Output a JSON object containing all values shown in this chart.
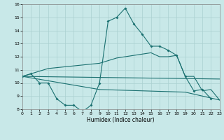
{
  "xlabel": "Humidex (Indice chaleur)",
  "xlim": [
    0,
    23
  ],
  "ylim": [
    8,
    16
  ],
  "xticks": [
    0,
    1,
    2,
    3,
    4,
    5,
    6,
    7,
    8,
    9,
    10,
    11,
    12,
    13,
    14,
    15,
    16,
    17,
    18,
    19,
    20,
    21,
    22,
    23
  ],
  "yticks": [
    8,
    9,
    10,
    11,
    12,
    13,
    14,
    15,
    16
  ],
  "bg_color": "#c8e8e8",
  "grid_color": "#aad0d0",
  "line_color": "#1a7070",
  "line1_x": [
    0,
    1,
    2,
    3,
    4,
    5,
    6,
    7,
    8,
    9,
    10,
    11,
    12,
    13,
    14,
    15,
    16,
    17,
    18,
    19,
    20,
    21,
    22
  ],
  "line1_y": [
    10.5,
    10.7,
    10.0,
    10.0,
    8.8,
    8.3,
    8.3,
    7.8,
    8.3,
    10.0,
    14.7,
    15.0,
    15.7,
    14.5,
    13.7,
    12.8,
    12.8,
    12.5,
    12.1,
    10.5,
    9.4,
    9.5,
    8.8
  ],
  "line2_x": [
    0,
    1,
    2,
    3,
    9,
    10,
    11,
    12,
    13,
    14,
    15,
    16,
    17,
    18,
    19,
    20,
    21,
    22,
    23
  ],
  "line2_y": [
    10.5,
    10.7,
    10.9,
    11.1,
    11.5,
    11.7,
    11.9,
    12.0,
    12.1,
    12.2,
    12.3,
    12.0,
    12.0,
    12.1,
    10.5,
    10.5,
    9.4,
    9.5,
    8.7
  ],
  "line3_x": [
    0,
    23
  ],
  "line3_y": [
    10.5,
    10.3
  ],
  "line4_x": [
    0,
    9,
    14,
    19,
    23
  ],
  "line4_y": [
    10.5,
    9.5,
    9.4,
    9.3,
    8.7
  ]
}
